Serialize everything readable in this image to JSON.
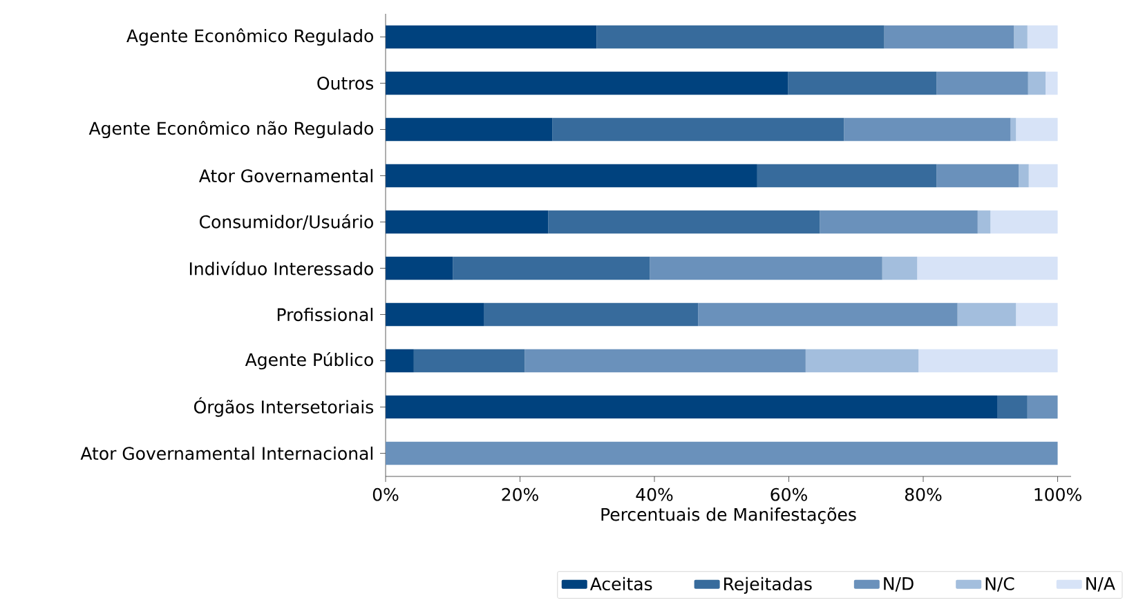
{
  "chart_data": {
    "type": "bar",
    "orientation": "horizontal",
    "stacked": true,
    "xlabel": "Percentuais de Manifestações",
    "legend": "bottom",
    "categories": [
      "Agente Econômico Regulado",
      "Outros",
      "Agente Econômico não Regulado",
      "Ator Governamental",
      "Consumidor/Usuário",
      "Indivíduo Interessado",
      "Profissional",
      "Agente Público",
      "Órgãos Intersetoriais",
      "Ator Governamental Internacional"
    ],
    "series": [
      {
        "name": "Aceitas",
        "color": "#00427e",
        "values": [
          31.4,
          59.9,
          24.8,
          55.3,
          24.2,
          10.0,
          14.6,
          4.2,
          91.0,
          0
        ]
      },
      {
        "name": "Rejeitadas",
        "color": "#376b9c",
        "values": [
          42.8,
          22.1,
          43.4,
          26.7,
          40.4,
          29.3,
          31.9,
          16.5,
          4.5,
          0
        ]
      },
      {
        "name": "N/D",
        "color": "#6a91bb",
        "values": [
          19.3,
          13.6,
          24.8,
          12.2,
          23.5,
          34.6,
          38.6,
          41.8,
          4.5,
          100
        ]
      },
      {
        "name": "N/C",
        "color": "#a3bedd",
        "values": [
          2.0,
          2.6,
          0.8,
          1.5,
          1.9,
          5.2,
          8.7,
          16.8,
          0,
          0
        ]
      },
      {
        "name": "N/A",
        "color": "#d7e3f7",
        "values": [
          4.5,
          1.8,
          6.2,
          4.3,
          10.0,
          20.9,
          6.2,
          20.7,
          0,
          0
        ]
      }
    ],
    "xlim": [
      0,
      102
    ],
    "xticks": [
      {
        "value": 0,
        "label": "0%"
      },
      {
        "value": 20,
        "label": "20%"
      },
      {
        "value": 40,
        "label": "40%"
      },
      {
        "value": 60,
        "label": "60%"
      },
      {
        "value": 80,
        "label": "80%"
      },
      {
        "value": 100,
        "label": "100%"
      }
    ]
  }
}
